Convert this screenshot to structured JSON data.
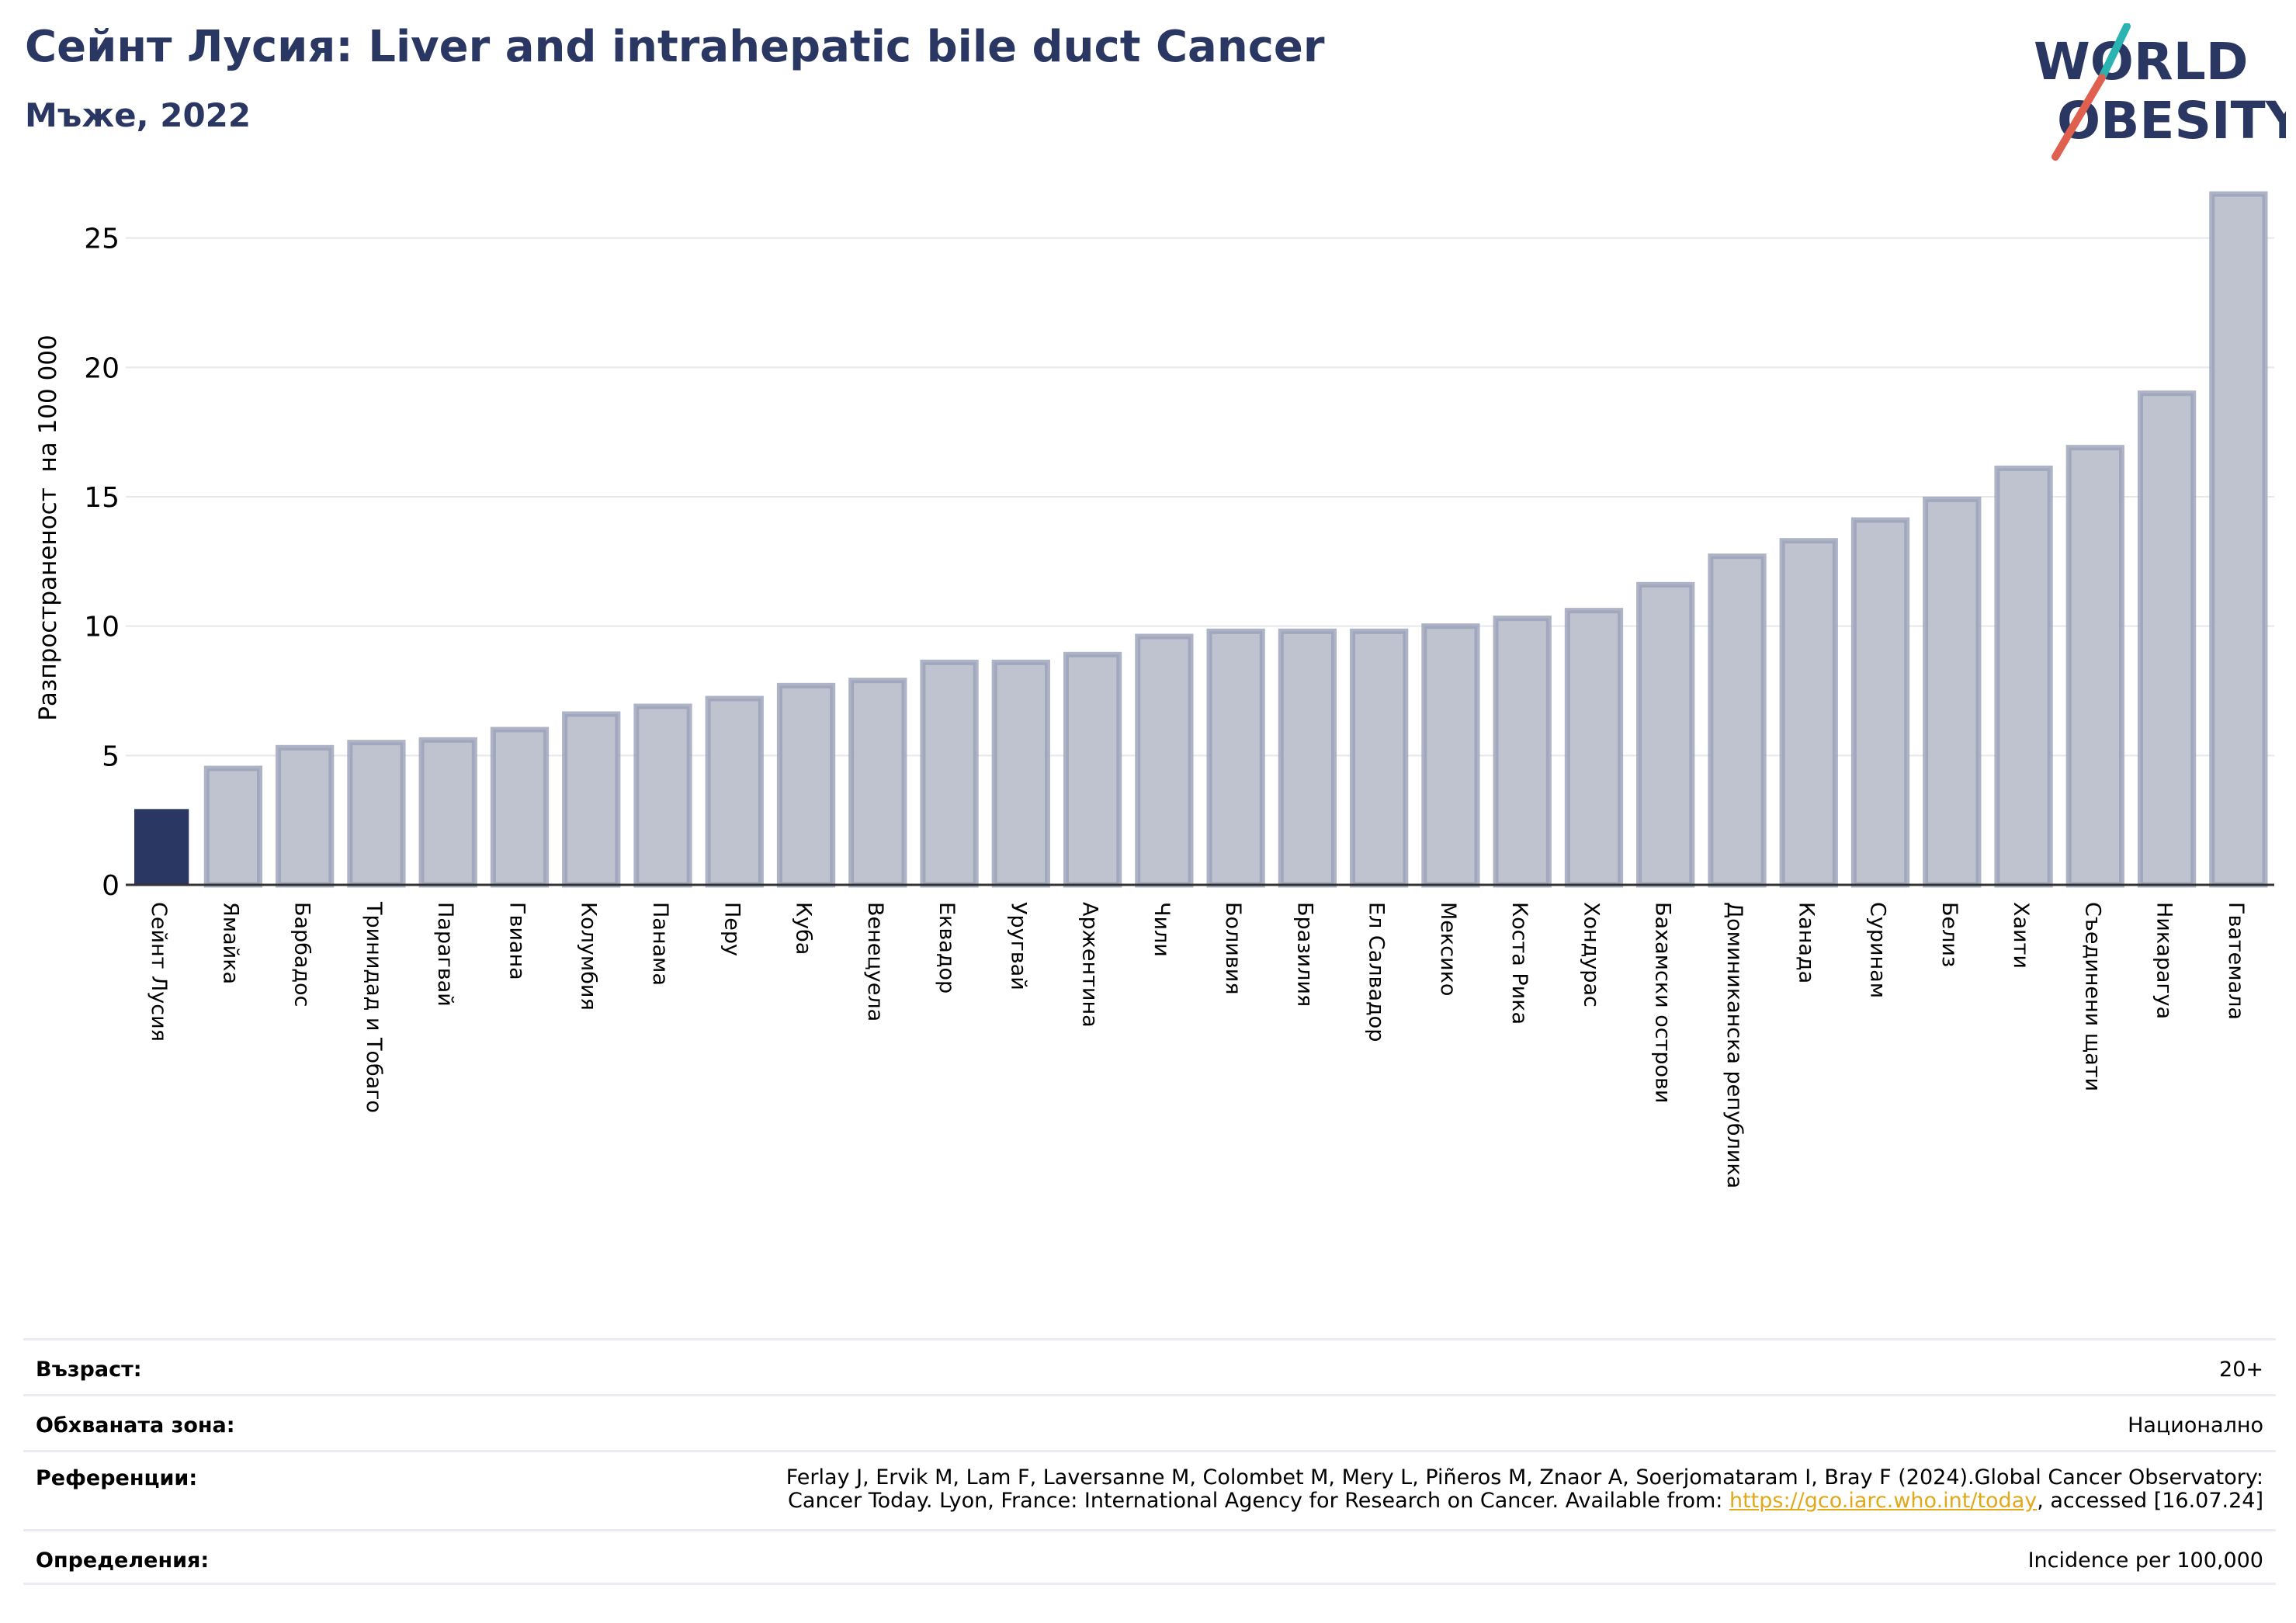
{
  "header": {
    "title": "Сейнт Лусия: Liver and intrahepatic bile duct Cancer",
    "subtitle": "Мъже, 2022"
  },
  "logo": {
    "line1": "WORLD",
    "line2": "OBESITY"
  },
  "chart_data": {
    "type": "bar",
    "title": "Сейнт Лусия: Liver and intrahepatic bile duct Cancer",
    "subtitle": "Мъже, 2022",
    "xlabel": "",
    "ylabel": "Разпространеност  на 100 000",
    "ylim": [
      0,
      27
    ],
    "yticks": [
      0,
      5,
      10,
      15,
      20,
      25
    ],
    "grid": true,
    "highlight": "Сейнт Лусия",
    "categories": [
      "Сейнт Лусия",
      "Ямайка",
      "Барбадос",
      "Тринидад и Тобаго",
      "Парагвай",
      "Гвиана",
      "Колумбия",
      "Панама",
      "Перу",
      "Куба",
      "Венецуела",
      "Еквадор",
      "Уругвай",
      "Аржентина",
      "Чили",
      "Боливия",
      "Бразилия",
      "Ел Салвадор",
      "Мексико",
      "Коста Рика",
      "Хондурас",
      "Бахамски острови",
      "Доминиканска република",
      "Канада",
      "Суринам",
      "Белиз",
      "Хаити",
      "Съединени щати",
      "Никарагуа",
      "Гватемала"
    ],
    "values": [
      2.9,
      4.5,
      5.3,
      5.5,
      5.6,
      6.0,
      6.6,
      6.9,
      7.2,
      7.7,
      7.9,
      8.6,
      8.6,
      8.9,
      9.6,
      9.8,
      9.8,
      9.8,
      10.0,
      10.3,
      10.6,
      11.6,
      12.7,
      13.3,
      14.1,
      14.9,
      16.1,
      16.9,
      19.0,
      26.7
    ],
    "colors": {
      "highlight": "#2a3763",
      "bar": "#bfc3d0",
      "bar_edge": "#9aa1b8",
      "grid": "#e6e8ee",
      "axis": "#333333"
    }
  },
  "info": {
    "age_label": "Възраст:",
    "age_value": "20+",
    "area_label": "Обхваната зона:",
    "area_value": "Национално",
    "ref_label": "Референции:",
    "ref_line1": "Ferlay J, Ervik M, Lam F, Laversanne M, Colombet M, Mery L, Piñeros M, Znaor A, Soerjomataram I, Bray F (2024).Global Cancer Observatory:",
    "ref_line2_pre": "Cancer Today. Lyon, France: International Agency for Research on Cancer. Available from: ",
    "ref_link": "https://gco.iarc.who.int/today",
    "ref_line2_post": ", accessed [16.07.24]",
    "def_label": "Определения:",
    "def_value": "Incidence per 100,000"
  }
}
